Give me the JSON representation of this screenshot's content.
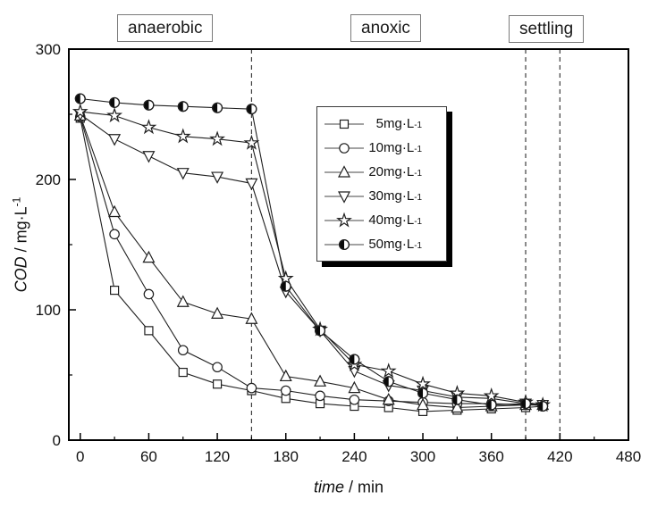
{
  "chart_data": {
    "type": "line",
    "title": "",
    "xlabel": {
      "italic": "time",
      "rest": " / min"
    },
    "ylabel": {
      "italic": "COD",
      "rest": " / mg·L",
      "sup": "-1"
    },
    "xlim": [
      -10,
      480
    ],
    "ylim": [
      0,
      300
    ],
    "x_ticks": [
      0,
      60,
      120,
      180,
      240,
      300,
      360,
      420,
      480
    ],
    "x_minor_ticks": [
      30,
      90,
      150,
      210,
      270,
      330,
      390,
      450
    ],
    "y_ticks": [
      0,
      100,
      200,
      300
    ],
    "y_minor_ticks": [
      50,
      150,
      250
    ],
    "grid": "off",
    "legend_position": "upper-middle",
    "x": [
      0,
      30,
      60,
      90,
      120,
      150,
      180,
      210,
      240,
      270,
      300,
      330,
      360,
      390,
      405
    ],
    "series": [
      {
        "name": "5 mg·L⁻¹",
        "conc": "5",
        "marker": "square",
        "values": [
          247,
          115,
          84,
          52,
          43,
          38,
          32,
          28,
          26,
          25,
          22,
          23,
          24,
          25,
          26
        ]
      },
      {
        "name": "10 mg·L⁻¹",
        "conc": "10",
        "marker": "circle",
        "values": [
          248,
          158,
          112,
          69,
          56,
          40,
          38,
          34,
          31,
          30,
          29,
          28,
          28,
          27,
          27
        ]
      },
      {
        "name": "20 mg·L⁻¹",
        "conc": "20",
        "marker": "triangle-up",
        "values": [
          249,
          175,
          140,
          106,
          97,
          93,
          49,
          45,
          40,
          31,
          27,
          25,
          26,
          27,
          27
        ]
      },
      {
        "name": "30 mg·L⁻¹",
        "conc": "30",
        "marker": "triangle-down",
        "values": [
          250,
          231,
          218,
          205,
          202,
          197,
          114,
          84,
          53,
          42,
          38,
          33,
          32,
          28,
          27
        ]
      },
      {
        "name": "40 mg·L⁻¹",
        "conc": "40",
        "marker": "star",
        "values": [
          252,
          249,
          240,
          233,
          231,
          228,
          124,
          85,
          58,
          53,
          43,
          36,
          34,
          29,
          27
        ]
      },
      {
        "name": "50 mg·L⁻¹",
        "conc": "50",
        "marker": "half-circle",
        "values": [
          262,
          259,
          257,
          256,
          255,
          254,
          118,
          84,
          62,
          45,
          36,
          31,
          27,
          28,
          26
        ]
      }
    ],
    "legend_unit": " mg·L",
    "legend_exponent": "-1",
    "phase_lines": [
      150,
      390,
      420
    ],
    "phase_labels": [
      {
        "text": "anaerobic"
      },
      {
        "text": "anoxic"
      },
      {
        "text": "settling"
      }
    ]
  },
  "colors": {
    "line": "#1f1f1f",
    "marker_stroke": "#1f1f1f",
    "marker_fill": "#ffffff",
    "half_fill": "#0a0a0a",
    "frame": "#000000",
    "dashed": "#3c3c3c",
    "text": "#111111",
    "legend_border": "#3a3a3a",
    "legend_shadow": "#000000",
    "background": "#ffffff"
  }
}
